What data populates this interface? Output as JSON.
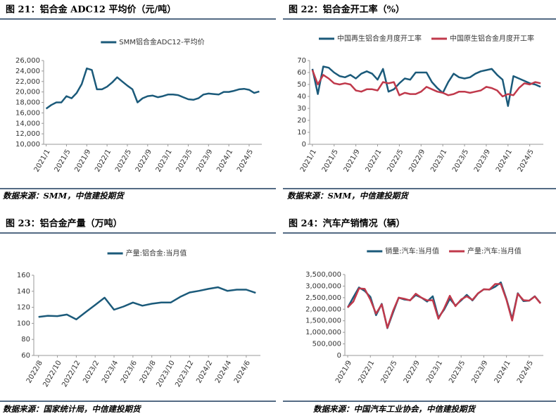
{
  "chart_data": [
    {
      "type": "line",
      "title": "图 21：铝合金 ADC12 平均价（元/吨）",
      "source": "数据来源：SMM，中信建投期货",
      "categories": [
        "2021/1",
        null,
        null,
        null,
        "2021/5",
        null,
        null,
        null,
        "2021/9",
        null,
        null,
        null,
        "2022/1",
        null,
        null,
        null,
        "2022/5",
        null,
        null,
        null,
        "2022/9",
        null,
        null,
        null,
        "2023/1",
        null,
        null,
        null,
        "2023/5",
        null,
        null,
        null,
        "2023/9",
        null,
        null,
        null,
        "2024/1",
        null,
        null,
        null,
        "2024/5",
        null,
        null
      ],
      "series": [
        {
          "name": "SMM铝合金ADC12-平均价",
          "color": "#1b5a7a",
          "values": [
            16800,
            17500,
            18000,
            18000,
            19200,
            18800,
            19800,
            21500,
            24500,
            24200,
            20500,
            20500,
            21000,
            21800,
            22800,
            22000,
            21200,
            20500,
            18000,
            18800,
            19200,
            19300,
            19000,
            19200,
            19500,
            19500,
            19400,
            19000,
            18600,
            18500,
            18800,
            19500,
            19700,
            19600,
            19500,
            20000,
            20000,
            20200,
            20500,
            20600,
            20400,
            19800,
            20100
          ]
        }
      ],
      "ylim": [
        10000,
        26000
      ],
      "yticks": [
        {
          "value": 10000,
          "label": "10,000"
        },
        {
          "value": 12000,
          "label": "12,000"
        },
        {
          "value": 14000,
          "label": "14,000"
        },
        {
          "value": 16000,
          "label": "16,000"
        },
        {
          "value": 18000,
          "label": "18,000"
        },
        {
          "value": 20000,
          "label": "20,000"
        },
        {
          "value": 22000,
          "label": "22,000"
        },
        {
          "value": 24000,
          "label": "24,000"
        },
        {
          "value": 26000,
          "label": "26,000"
        }
      ],
      "legend": "top"
    },
    {
      "type": "line",
      "title": "图 22：铝合金开工率（%）",
      "source": "数据来源：SMM，中信建投期货",
      "categories": [
        "2021/1",
        null,
        null,
        null,
        "2021/5",
        null,
        null,
        null,
        "2021/9",
        null,
        null,
        null,
        "2022/1",
        null,
        null,
        null,
        "2022/5",
        null,
        null,
        null,
        "2022/9",
        null,
        null,
        null,
        "2023/1",
        null,
        null,
        null,
        "2023/5",
        null,
        null,
        null,
        "2023/9",
        null,
        null,
        null,
        "2024/1",
        null,
        null,
        null,
        "2024/5",
        null,
        null
      ],
      "series": [
        {
          "name": "中国再生铝合金月度开工率",
          "color": "#1b5a7a",
          "values": [
            63,
            42,
            65,
            64,
            60,
            57,
            56,
            58,
            55,
            59,
            61,
            59,
            54,
            63,
            44,
            46,
            51,
            55,
            54,
            60,
            60,
            60,
            52,
            47,
            43,
            52,
            59,
            56,
            55,
            56,
            59,
            61,
            62,
            63,
            58,
            54,
            32,
            57,
            55,
            53,
            51,
            50,
            48
          ]
        },
        {
          "name": "中国原生铝合金月度开工率",
          "color": "#c0394b",
          "values": [
            62,
            50,
            58,
            55,
            51,
            50,
            51,
            50,
            45,
            44,
            46,
            46,
            45,
            52,
            51,
            52,
            41,
            43,
            42,
            42,
            44,
            48,
            46,
            44,
            43,
            41,
            42,
            44,
            44,
            43,
            44,
            45,
            48,
            47,
            45,
            40,
            42,
            41,
            47,
            51,
            50,
            52,
            51
          ]
        }
      ],
      "ylim": [
        0,
        70
      ],
      "yticks": [
        0,
        10,
        20,
        30,
        40,
        50,
        60,
        70
      ],
      "legend": "top"
    },
    {
      "type": "line",
      "title": "图 23：铝合金产量（万吨）",
      "source": "数据来源：国家统计局，中信建投期货",
      "categories": [
        "2022/8",
        null,
        "2022/10",
        null,
        "2022/12",
        null,
        "2023/2",
        null,
        "2023/4",
        null,
        "2023/6",
        null,
        "2023/8",
        null,
        "2023/10",
        null,
        "2023/12",
        null,
        "2024/2",
        null,
        "2024/4",
        null,
        "2024/6",
        null
      ],
      "series": [
        {
          "name": "产量:铝合金:当月值",
          "color": "#1b5a7a",
          "values": [
            108,
            109.5,
            109,
            111,
            105,
            114,
            123,
            132,
            117,
            121,
            126,
            122,
            124.5,
            126,
            126,
            133,
            138.5,
            140.5,
            143,
            145,
            140.5,
            142,
            142,
            138
          ]
        }
      ],
      "ylim": [
        60,
        160
      ],
      "yticks": [
        60,
        80,
        100,
        120,
        140,
        160
      ],
      "legend": "top"
    },
    {
      "type": "line",
      "title": "图 24：汽车产销情况（辆）",
      "source": "数据来源：中国汽车工业协会，中信建投期货",
      "categories": [
        "2021/9",
        null,
        null,
        null,
        "2022/1",
        null,
        null,
        null,
        "2022/5",
        null,
        null,
        null,
        "2022/9",
        null,
        null,
        null,
        "2023/1",
        null,
        null,
        null,
        "2023/5",
        null,
        null,
        null,
        "2023/9",
        null,
        null,
        null,
        "2024/1",
        null,
        null,
        null,
        "2024/5",
        null,
        null
      ],
      "series": [
        {
          "name": "销量:汽车:当月值",
          "color": "#1b5a7a",
          "values": [
            2070000,
            2520000,
            2940000,
            2790000,
            2530000,
            1740000,
            2230000,
            1180000,
            1860000,
            2500000,
            2420000,
            2390000,
            2610000,
            2500000,
            2330000,
            2560000,
            1640000,
            1980000,
            2450000,
            2160000,
            2380000,
            2620000,
            2380000,
            2680000,
            2860000,
            2850000,
            2970000,
            3160000,
            2440000,
            1580000,
            2690000,
            2350000,
            2370000,
            2560000,
            2260000
          ]
        },
        {
          "name": "产量:汽车:当月值",
          "color": "#c0394b",
          "values": [
            2080000,
            2330000,
            2900000,
            2880000,
            2410000,
            1810000,
            2210000,
            1200000,
            1930000,
            2500000,
            2450000,
            2380000,
            2670000,
            2500000,
            2380000,
            2390000,
            1590000,
            2030000,
            2580000,
            2130000,
            2420000,
            2560000,
            2400000,
            2690000,
            2860000,
            2850000,
            3090000,
            3090000,
            2410000,
            1510000,
            2670000,
            2390000,
            2370000,
            2550000,
            2250000
          ]
        }
      ],
      "ylim": [
        0,
        3500000
      ],
      "yticks": [
        {
          "value": 0,
          "label": "0"
        },
        {
          "value": 500000,
          "label": "500,000"
        },
        {
          "value": 1000000,
          "label": "1,000,000"
        },
        {
          "value": 1500000,
          "label": "1,500,000"
        },
        {
          "value": 2000000,
          "label": "2,000,000"
        },
        {
          "value": 2500000,
          "label": "2,500,000"
        },
        {
          "value": 3000000,
          "label": "3,000,000"
        },
        {
          "value": 3500000,
          "label": "3,500,000"
        }
      ],
      "legend": "top"
    }
  ]
}
